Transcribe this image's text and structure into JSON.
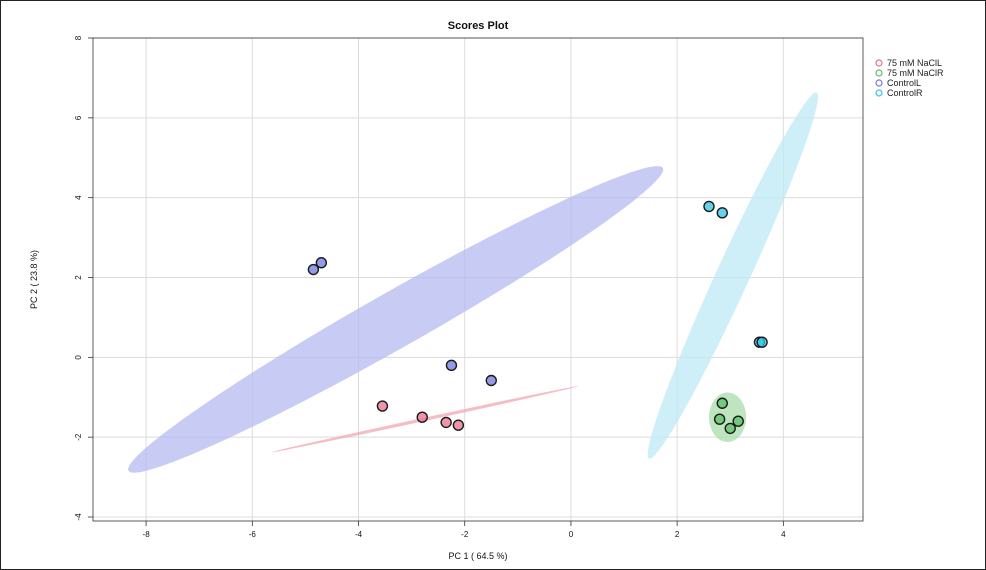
{
  "chart_data": {
    "type": "scatter",
    "title": "Scores Plot",
    "xlabel": "PC 1 ( 64.5 %)",
    "ylabel": "PC 2 ( 23.8 %)",
    "xlim": [
      -9.0,
      5.5
    ],
    "ylim": [
      -4.1,
      8.0
    ],
    "xticks": [
      -8,
      -6,
      -4,
      -2,
      0,
      2,
      4
    ],
    "yticks": [
      -4,
      -2,
      0,
      2,
      4,
      6,
      8
    ],
    "grid": true,
    "legend_position": "top-right",
    "series": [
      {
        "name": "75 mM NaClL",
        "color": "#e8738a",
        "fill": "#f2a7b3",
        "points": [
          [
            -3.55,
            -1.22
          ],
          [
            -2.8,
            -1.5
          ],
          [
            -2.35,
            -1.63
          ],
          [
            -2.12,
            -1.7
          ]
        ],
        "ellipse": {
          "cx": -2.75,
          "cy": -1.55,
          "rx": 3.0,
          "ry": 0.04,
          "angle_deg": -16
        }
      },
      {
        "name": "75 mM NaClR",
        "color": "#5cbf6a",
        "fill": "#a8dcaa",
        "points": [
          [
            2.85,
            -1.15
          ],
          [
            2.8,
            -1.55
          ],
          [
            3.15,
            -1.6
          ],
          [
            3.0,
            -1.78
          ]
        ],
        "ellipse": {
          "cx": 2.95,
          "cy": -1.5,
          "rx": 0.35,
          "ry": 0.62,
          "angle_deg": 0
        }
      },
      {
        "name": "ControlL",
        "color": "#6f7ae0",
        "fill": "#b5bbf0",
        "points": [
          [
            -4.85,
            2.2
          ],
          [
            -4.7,
            2.37
          ],
          [
            -2.25,
            -0.2
          ],
          [
            -1.5,
            -0.58
          ]
        ],
        "ellipse": {
          "cx": -3.3,
          "cy": 0.95,
          "rx": 6.3,
          "ry": 0.62,
          "angle_deg": -37
        }
      },
      {
        "name": "ControlR",
        "color": "#35c3e6",
        "fill": "#bdeaf6",
        "points": [
          [
            2.6,
            3.78
          ],
          [
            2.85,
            3.62
          ],
          [
            3.55,
            0.38
          ],
          [
            3.6,
            0.38
          ]
        ],
        "ellipse": {
          "cx": 3.05,
          "cy": 2.05,
          "rx": 4.85,
          "ry": 0.32,
          "angle_deg": -71
        }
      }
    ]
  }
}
